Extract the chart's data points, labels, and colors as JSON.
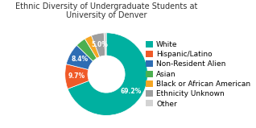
{
  "title": "Ethnic Diversity of Undergraduate Students at\nUniversity of Denver",
  "labels": [
    "White",
    "Hispanic/Latino",
    "Non-Resident Alien",
    "Asian",
    "Black or African American",
    "Ethnicity Unknown",
    "Other"
  ],
  "values": [
    69.2,
    9.7,
    8.4,
    4.0,
    2.8,
    5.0,
    0.9
  ],
  "colors": [
    "#00b0a0",
    "#f05a28",
    "#2e6db4",
    "#4caf50",
    "#f5a623",
    "#9e9e9e",
    "#d3d3d3"
  ],
  "label_percents": [
    "69.2%",
    "9.7%",
    "8.4%",
    "",
    "",
    "5.0%",
    ""
  ],
  "background_color": "#ffffff",
  "title_fontsize": 7,
  "legend_fontsize": 6.5
}
